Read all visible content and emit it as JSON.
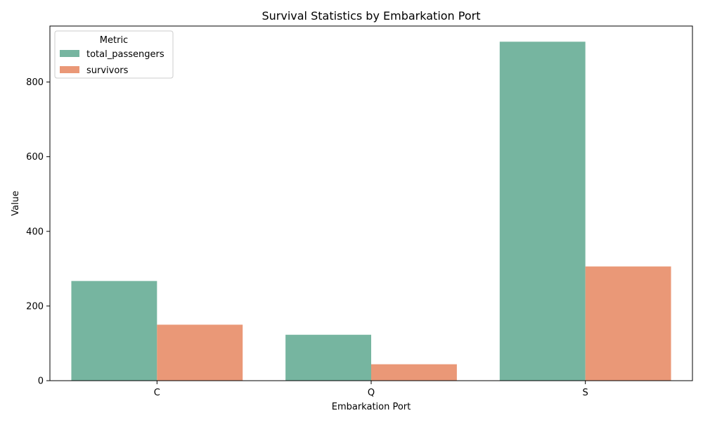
{
  "chart_data": {
    "type": "bar",
    "title": "Survival Statistics by Embarkation Port",
    "xlabel": "Embarkation Port",
    "ylabel": "Value",
    "categories": [
      "C",
      "Q",
      "S"
    ],
    "series": [
      {
        "name": "total_passengers",
        "values": [
          267,
          123,
          908
        ],
        "color": "#76b5a0"
      },
      {
        "name": "survivors",
        "values": [
          150,
          44,
          306
        ],
        "color": "#ea9877"
      }
    ],
    "ylim": [
      0,
      950
    ],
    "yticks": [
      0,
      200,
      400,
      600,
      800
    ],
    "legend": {
      "title": "Metric",
      "placement": "top-left"
    },
    "grid": false
  }
}
